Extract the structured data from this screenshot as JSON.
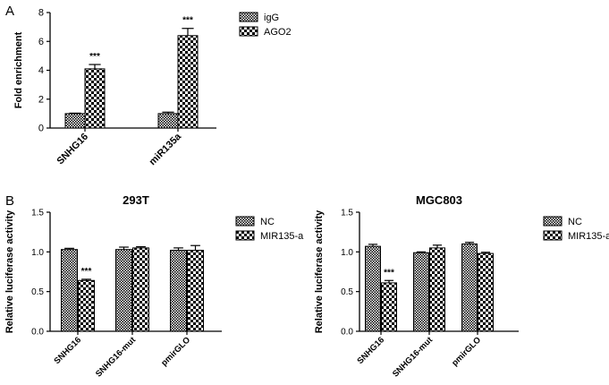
{
  "panels": {
    "a": "A",
    "b": "B"
  },
  "patterns": {
    "checker_color": "#000000",
    "background": "#ffffff"
  },
  "chart_data": [
    {
      "id": "panelA",
      "type": "bar",
      "title": "",
      "ylabel": "Fold enrichment",
      "xlabel": "",
      "categories": [
        "SNHG16",
        "miR135a"
      ],
      "ylim": [
        0,
        8
      ],
      "yticks": [
        0,
        2,
        4,
        6,
        8
      ],
      "legend_position": "top-right",
      "series": [
        {
          "name": "igG",
          "pattern": "small-check",
          "values": [
            1.0,
            1.0
          ],
          "errors": [
            0.03,
            0.1
          ]
        },
        {
          "name": "AGO2",
          "pattern": "large-check",
          "values": [
            4.1,
            6.4
          ],
          "errors": [
            0.3,
            0.5
          ]
        }
      ],
      "annotations": [
        {
          "category": "SNHG16",
          "series": "AGO2",
          "text": "***"
        },
        {
          "category": "miR135a",
          "series": "AGO2",
          "text": "***"
        }
      ]
    },
    {
      "id": "panelB1",
      "type": "bar",
      "title": "293T",
      "ylabel": "Relative luciferase activity",
      "xlabel": "",
      "categories": [
        "SNHG16",
        "SNHG16-mut",
        "pmirGLO"
      ],
      "ylim": [
        0,
        1.5
      ],
      "yticks": [
        "0.0",
        "0.5",
        "1.0",
        "1.5"
      ],
      "legend_position": "top-right",
      "series": [
        {
          "name": "NC",
          "pattern": "small-check",
          "values": [
            1.03,
            1.03,
            1.02
          ],
          "errors": [
            0.015,
            0.03,
            0.03
          ]
        },
        {
          "name": "MIR135-a",
          "pattern": "large-check",
          "values": [
            0.64,
            1.05,
            1.02
          ],
          "errors": [
            0.015,
            0.015,
            0.06
          ]
        }
      ],
      "annotations": [
        {
          "category": "SNHG16",
          "series": "MIR135-a",
          "text": "***"
        }
      ]
    },
    {
      "id": "panelB2",
      "type": "bar",
      "title": "MGC803",
      "ylabel": "Relative luciferase activity",
      "xlabel": "",
      "categories": [
        "SNHG16",
        "SNHG16-mut",
        "pmirGLO"
      ],
      "ylim": [
        0,
        1.5
      ],
      "yticks": [
        "0.0",
        "0.5",
        "1.0",
        "1.5"
      ],
      "legend_position": "top-right",
      "series": [
        {
          "name": "NC",
          "pattern": "small-check",
          "values": [
            1.07,
            0.99,
            1.1
          ],
          "errors": [
            0.025,
            0.01,
            0.02
          ]
        },
        {
          "name": "MIR135-a",
          "pattern": "large-check",
          "values": [
            0.61,
            1.05,
            0.98
          ],
          "errors": [
            0.03,
            0.035,
            0.015
          ]
        }
      ],
      "annotations": [
        {
          "category": "SNHG16",
          "series": "MIR135-a",
          "text": "***"
        }
      ]
    }
  ]
}
